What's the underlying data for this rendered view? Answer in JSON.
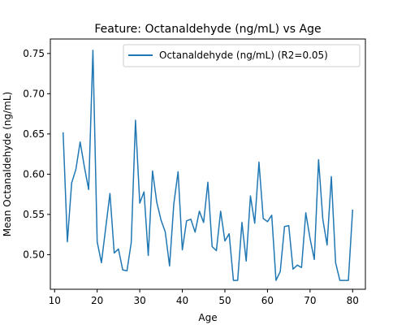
{
  "chart_data": {
    "type": "line",
    "title": "Feature: Octanaldehyde (ng/mL) vs Age",
    "xlabel": "Age",
    "ylabel": "Mean Octanaldehyde (ng/mL)",
    "xlim": [
      9,
      83
    ],
    "ylim": [
      0.457,
      0.768
    ],
    "xticks": [
      10,
      20,
      30,
      40,
      50,
      60,
      70,
      80
    ],
    "yticks": [
      0.5,
      0.55,
      0.6,
      0.65,
      0.7,
      0.75
    ],
    "ytick_labels": [
      "0.50",
      "0.55",
      "0.60",
      "0.65",
      "0.70",
      "0.75"
    ],
    "grid": false,
    "legend_position": "top-right",
    "series": [
      {
        "name": "Octanaldehyde (ng/mL) (R2=0.05)",
        "color": "#1f77b4",
        "x": [
          12,
          13,
          14,
          15,
          16,
          17,
          18,
          19,
          20,
          21,
          22,
          23,
          24,
          25,
          26,
          27,
          28,
          29,
          30,
          31,
          32,
          33,
          34,
          35,
          36,
          37,
          38,
          39,
          40,
          41,
          42,
          43,
          44,
          45,
          46,
          47,
          48,
          49,
          50,
          51,
          52,
          53,
          54,
          55,
          56,
          57,
          58,
          59,
          60,
          61,
          62,
          63,
          64,
          65,
          66,
          67,
          68,
          69,
          70,
          71,
          72,
          73,
          74,
          75,
          76,
          77,
          78,
          79,
          80
        ],
        "y": [
          0.652,
          0.516,
          0.589,
          0.606,
          0.64,
          0.609,
          0.581,
          0.754,
          0.516,
          0.49,
          0.533,
          0.576,
          0.502,
          0.507,
          0.481,
          0.48,
          0.515,
          0.667,
          0.564,
          0.578,
          0.499,
          0.604,
          0.565,
          0.543,
          0.528,
          0.486,
          0.563,
          0.603,
          0.506,
          0.542,
          0.544,
          0.528,
          0.554,
          0.54,
          0.59,
          0.51,
          0.505,
          0.554,
          0.517,
          0.526,
          0.468,
          0.468,
          0.54,
          0.492,
          0.573,
          0.539,
          0.615,
          0.545,
          0.541,
          0.549,
          0.468,
          0.479,
          0.535,
          0.536,
          0.482,
          0.487,
          0.484,
          0.552,
          0.52,
          0.494,
          0.618,
          0.544,
          0.512,
          0.597,
          0.49,
          0.468,
          0.468,
          0.468,
          0.556
        ]
      }
    ]
  }
}
